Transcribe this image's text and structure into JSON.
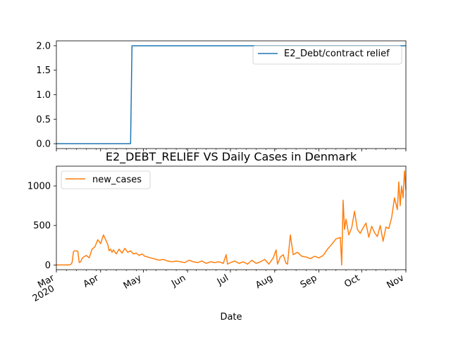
{
  "chart_data": [
    {
      "type": "line",
      "title": "",
      "xlabel": "",
      "ylabel": "",
      "ylim": [
        -0.1,
        2.1
      ],
      "yticks": [
        0.0,
        0.5,
        1.0,
        1.5,
        2.0
      ],
      "ytick_labels": [
        "0.0",
        "0.5",
        "1.0",
        "1.5",
        "2.0"
      ],
      "legend_position": "upper right",
      "grid": false,
      "series": [
        {
          "name": "E2_Debt/contract relief",
          "color": "#1f77b4",
          "x": [
            "2020-03-01",
            "2020-04-22",
            "2020-04-23",
            "2020-11-01"
          ],
          "values": [
            0,
            0,
            2,
            2
          ]
        }
      ]
    },
    {
      "type": "line",
      "title": "E2_DEBT_RELIEF VS Daily Cases in Denmark",
      "xlabel": "Date",
      "ylabel": "",
      "ylim": [
        -60,
        1250
      ],
      "yticks": [
        0,
        500,
        1000
      ],
      "ytick_labels": [
        "0",
        "500",
        "1000"
      ],
      "xlim": [
        "2020-03-01",
        "2020-11-01"
      ],
      "xticks": [
        {
          "date": "2020-03-01",
          "label": "Mar",
          "label2": "2020"
        },
        {
          "date": "2020-04-01",
          "label": "Apr"
        },
        {
          "date": "2020-05-01",
          "label": "May"
        },
        {
          "date": "2020-06-01",
          "label": "Jun"
        },
        {
          "date": "2020-07-01",
          "label": "Jul"
        },
        {
          "date": "2020-08-01",
          "label": "Aug"
        },
        {
          "date": "2020-09-01",
          "label": "Sep"
        },
        {
          "date": "2020-10-01",
          "label": "Oct"
        },
        {
          "date": "2020-11-01",
          "label": "Nov"
        }
      ],
      "legend_position": "upper left",
      "grid": false,
      "series": [
        {
          "name": "new_cases",
          "color": "#ff7f0e",
          "x": [
            "2020-03-01",
            "2020-03-05",
            "2020-03-09",
            "2020-03-11",
            "2020-03-12",
            "2020-03-13",
            "2020-03-14",
            "2020-03-16",
            "2020-03-17",
            "2020-03-18",
            "2020-03-19",
            "2020-03-20",
            "2020-03-22",
            "2020-03-24",
            "2020-03-26",
            "2020-03-28",
            "2020-03-30",
            "2020-04-01",
            "2020-04-03",
            "2020-04-05",
            "2020-04-06",
            "2020-04-07",
            "2020-04-08",
            "2020-04-09",
            "2020-04-10",
            "2020-04-12",
            "2020-04-14",
            "2020-04-16",
            "2020-04-18",
            "2020-04-20",
            "2020-04-22",
            "2020-04-24",
            "2020-04-26",
            "2020-04-28",
            "2020-04-30",
            "2020-05-02",
            "2020-05-04",
            "2020-05-06",
            "2020-05-08",
            "2020-05-10",
            "2020-05-12",
            "2020-05-15",
            "2020-05-18",
            "2020-05-21",
            "2020-05-24",
            "2020-05-27",
            "2020-05-30",
            "2020-06-02",
            "2020-06-05",
            "2020-06-08",
            "2020-06-11",
            "2020-06-14",
            "2020-06-17",
            "2020-06-20",
            "2020-06-23",
            "2020-06-26",
            "2020-06-28",
            "2020-06-29",
            "2020-07-01",
            "2020-07-04",
            "2020-07-07",
            "2020-07-10",
            "2020-07-13",
            "2020-07-16",
            "2020-07-19",
            "2020-07-22",
            "2020-07-25",
            "2020-07-28",
            "2020-07-31",
            "2020-08-02",
            "2020-08-03",
            "2020-08-05",
            "2020-08-07",
            "2020-08-09",
            "2020-08-10",
            "2020-08-12",
            "2020-08-14",
            "2020-08-17",
            "2020-08-20",
            "2020-08-23",
            "2020-08-26",
            "2020-08-29",
            "2020-09-01",
            "2020-09-04",
            "2020-09-07",
            "2020-09-10",
            "2020-09-13",
            "2020-09-15",
            "2020-09-16",
            "2020-09-17",
            "2020-09-18",
            "2020-09-19",
            "2020-09-20",
            "2020-09-22",
            "2020-09-24",
            "2020-09-26",
            "2020-09-28",
            "2020-09-30",
            "2020-10-02",
            "2020-10-04",
            "2020-10-06",
            "2020-10-08",
            "2020-10-10",
            "2020-10-12",
            "2020-10-14",
            "2020-10-16",
            "2020-10-18",
            "2020-10-20",
            "2020-10-22",
            "2020-10-24",
            "2020-10-26",
            "2020-10-27",
            "2020-10-28",
            "2020-10-29",
            "2020-10-30",
            "2020-10-31",
            "2020-11-01"
          ],
          "values": [
            0,
            0,
            1,
            5,
            30,
            170,
            180,
            175,
            30,
            40,
            80,
            100,
            120,
            90,
            200,
            230,
            320,
            270,
            380,
            300,
            260,
            180,
            200,
            160,
            190,
            140,
            200,
            150,
            210,
            160,
            180,
            140,
            150,
            120,
            140,
            110,
            100,
            90,
            80,
            70,
            60,
            70,
            50,
            40,
            50,
            40,
            30,
            60,
            40,
            30,
            50,
            20,
            40,
            30,
            40,
            20,
            130,
            10,
            30,
            50,
            20,
            40,
            10,
            60,
            20,
            40,
            70,
            10,
            90,
            190,
            10,
            100,
            130,
            20,
            10,
            380,
            130,
            160,
            110,
            100,
            80,
            110,
            90,
            120,
            200,
            260,
            330,
            340,
            350,
            0,
            820,
            450,
            580,
            380,
            470,
            680,
            450,
            400,
            470,
            530,
            350,
            490,
            410,
            360,
            500,
            300,
            480,
            460,
            600,
            850,
            700,
            1050,
            750,
            1000,
            850,
            1190,
            950
          ]
        }
      ]
    }
  ]
}
